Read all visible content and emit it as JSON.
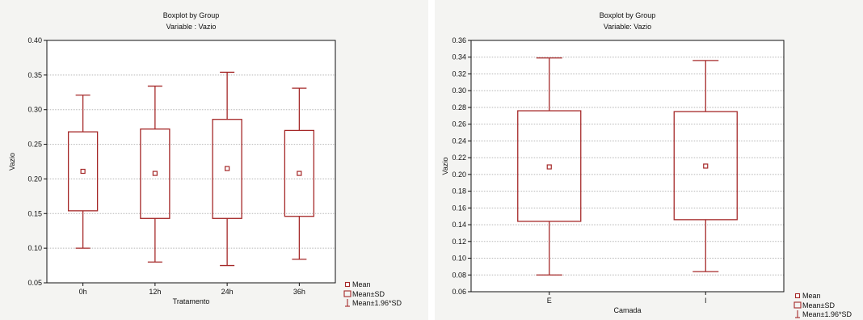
{
  "chart_data": [
    {
      "type": "boxplot",
      "title": "Boxplot by Group",
      "subtitle": "Variable : Vazio",
      "xlabel": "Tratamento",
      "ylabel": "Vazio",
      "ylim": [
        0.05,
        0.4
      ],
      "yticks": [
        "0.05",
        "0.10",
        "0.15",
        "0.20",
        "0.25",
        "0.30",
        "0.35",
        "0.40"
      ],
      "grid": true,
      "legend_position": "bottom-right",
      "categories": [
        "0h",
        "12h",
        "24h",
        "36h"
      ],
      "mean": [
        0.211,
        0.208,
        0.215,
        0.208
      ],
      "mean_minus_sd": [
        0.154,
        0.143,
        0.143,
        0.146
      ],
      "mean_plus_sd": [
        0.268,
        0.272,
        0.286,
        0.27
      ],
      "mean_minus_1_96sd": [
        0.1,
        0.08,
        0.075,
        0.084
      ],
      "mean_plus_1_96sd": [
        0.321,
        0.334,
        0.354,
        0.331
      ],
      "legend": [
        "Mean",
        "Mean±SD",
        "Mean±1.96*SD"
      ]
    },
    {
      "type": "boxplot",
      "title": "Boxplot by Group",
      "subtitle": "Variable: Vazio",
      "xlabel": "Camada",
      "ylabel": "Vazio",
      "ylim": [
        0.06,
        0.36
      ],
      "yticks": [
        "0.06",
        "0.08",
        "0.10",
        "0.12",
        "0.14",
        "0.16",
        "0.18",
        "0.20",
        "0.22",
        "0.24",
        "0.26",
        "0.28",
        "0.30",
        "0.32",
        "0.34",
        "0.36"
      ],
      "grid": true,
      "legend_position": "bottom-right",
      "categories": [
        "E",
        "I"
      ],
      "mean": [
        0.209,
        0.21
      ],
      "mean_minus_sd": [
        0.144,
        0.146
      ],
      "mean_plus_sd": [
        0.276,
        0.275
      ],
      "mean_minus_1_96sd": [
        0.08,
        0.084
      ],
      "mean_plus_1_96sd": [
        0.339,
        0.336
      ],
      "legend": [
        "Mean",
        "Mean±SD",
        "Mean±1.96*SD"
      ]
    }
  ],
  "colors": {
    "series": "#a52828",
    "grid": "#b8b8b8",
    "plot_bg": "#ffffff",
    "panel_bg": "#f4f4f2",
    "axis": "#111111"
  }
}
